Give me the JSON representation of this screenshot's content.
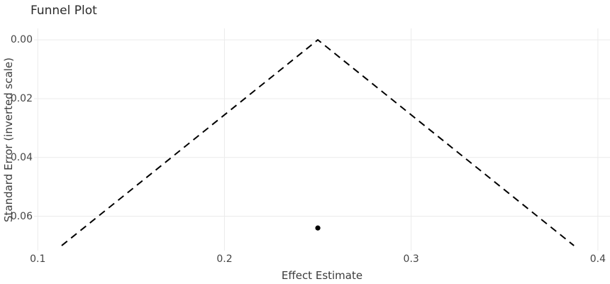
{
  "chart_data": {
    "type": "scatter",
    "title": "Funnel Plot",
    "xlabel": "Effect Estimate",
    "ylabel": "Standard Error (inverted scale)",
    "x_ticks": [
      {
        "value": 0.1,
        "label": "0.1"
      },
      {
        "value": 0.2,
        "label": "0.2"
      },
      {
        "value": 0.3,
        "label": "0.3"
      },
      {
        "value": 0.4,
        "label": "0.4"
      }
    ],
    "y_ticks": [
      {
        "value": 0.0,
        "label": "0.00"
      },
      {
        "value": 0.02,
        "label": "0.02"
      },
      {
        "value": 0.04,
        "label": "0.04"
      },
      {
        "value": 0.06,
        "label": "0.06"
      }
    ],
    "xlim": [
      0.098,
      0.4065
    ],
    "ylim": [
      -0.0039,
      0.0717
    ],
    "y_axis_inverted": true,
    "grid": true,
    "legend": "none",
    "funnel": {
      "apex": {
        "x": 0.25,
        "se": 0.0
      },
      "left_base": {
        "x": 0.1128,
        "se": 0.07
      },
      "right_base": {
        "x": 0.3872,
        "se": 0.07
      },
      "line_style": "dashed",
      "line_color": "#000000",
      "line_width": 2,
      "dash_pattern": "10 7"
    },
    "points": [
      {
        "x": 0.25,
        "se": 0.064
      }
    ],
    "point_color": "#000000",
    "point_radius": 3.6,
    "gridline_color": "#ebebeb",
    "tick_label_color": "#444444",
    "text_color": "#2a2a2a",
    "background_color": "#ffffff"
  }
}
